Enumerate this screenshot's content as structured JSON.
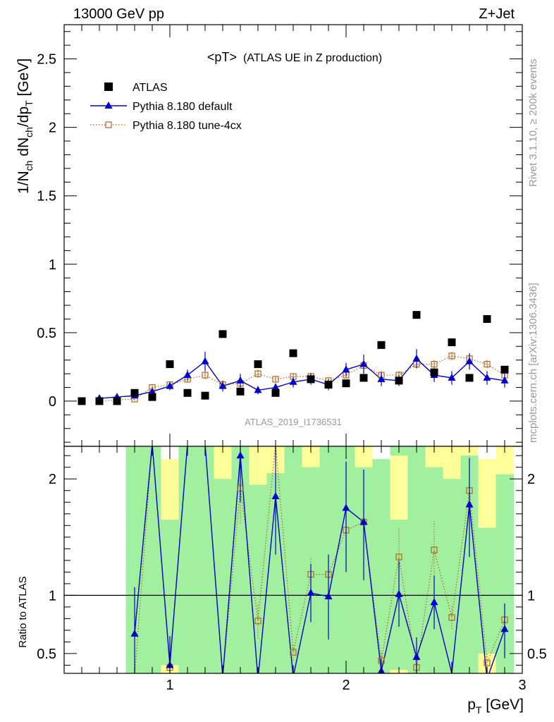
{
  "header": {
    "energy_label": "13000 GeV pp",
    "process_label": "Z+Jet",
    "plot_title_main": "<pT>",
    "plot_title_sub": "(ATLAS UE in Z production)",
    "analysis_id": "ATLAS_2019_I1736531",
    "side_label_top": "Rivet 3.1.10, ≥ 200k events",
    "side_label_bottom": "mcplots.cern.ch [arXiv:1306.3436]"
  },
  "colors": {
    "atlas": "#000000",
    "default": "#0000cc",
    "tune4cx": "#b5651d",
    "band_green": "#a0f0a0",
    "band_yellow": "#ffff99"
  },
  "chart_data": [
    {
      "type": "scatter",
      "ylabel": "1/N_ch dN_ch/dp_T [GeV]",
      "ylabel_main": "1/N",
      "ylabel_sub1": "ch",
      "ylabel_mid": " dN",
      "ylabel_sub2": "ch",
      "ylabel_mid2": "/dp",
      "ylabel_sub3": "T",
      "ylabel_unit": " [GeV]",
      "xlim": [
        0.4,
        3.0
      ],
      "ylim": [
        -0.33,
        2.75
      ],
      "yticks": [
        0,
        0.5,
        1,
        1.5,
        2,
        2.5
      ],
      "ytick_labels": [
        "0",
        "0.5",
        "1",
        "1.5",
        "2",
        "2.5"
      ],
      "legend_position": "top-left",
      "series": [
        {
          "name": "ATLAS",
          "style": "square",
          "x": [
            0.5,
            0.6,
            0.7,
            0.8,
            0.9,
            1.0,
            1.1,
            1.2,
            1.3,
            1.4,
            1.5,
            1.6,
            1.7,
            1.8,
            1.9,
            2.0,
            2.1,
            2.2,
            2.3,
            2.4,
            2.5,
            2.6,
            2.7,
            2.8,
            2.9
          ],
          "y": [
            0.0,
            0.0,
            0.0,
            0.06,
            0.03,
            0.27,
            0.06,
            0.04,
            0.49,
            0.07,
            0.27,
            0.06,
            0.35,
            0.16,
            0.12,
            0.13,
            0.17,
            0.41,
            0.15,
            0.63,
            0.21,
            0.43,
            0.17,
            0.6,
            0.23
          ]
        },
        {
          "name": "Pythia 8.180 default",
          "style": "triangle-line",
          "x": [
            0.6,
            0.7,
            0.8,
            0.9,
            1.0,
            1.1,
            1.2,
            1.3,
            1.4,
            1.5,
            1.6,
            1.7,
            1.8,
            1.9,
            2.0,
            2.1,
            2.2,
            2.3,
            2.4,
            2.5,
            2.6,
            2.7,
            2.8,
            2.9
          ],
          "y": [
            0.02,
            0.03,
            0.04,
            0.07,
            0.11,
            0.19,
            0.29,
            0.11,
            0.15,
            0.08,
            0.1,
            0.14,
            0.16,
            0.12,
            0.23,
            0.27,
            0.16,
            0.15,
            0.31,
            0.19,
            0.17,
            0.29,
            0.17,
            0.15
          ],
          "err": [
            0.01,
            0.01,
            0.01,
            0.02,
            0.03,
            0.04,
            0.07,
            0.04,
            0.05,
            0.03,
            0.03,
            0.04,
            0.04,
            0.04,
            0.05,
            0.07,
            0.05,
            0.04,
            0.07,
            0.05,
            0.05,
            0.06,
            0.05,
            0.05
          ]
        },
        {
          "name": "Pythia 8.180 tune-4cx",
          "style": "open-square-dotted",
          "x": [
            0.6,
            0.7,
            0.8,
            0.9,
            1.0,
            1.1,
            1.2,
            1.3,
            1.4,
            1.5,
            1.6,
            1.7,
            1.8,
            1.9,
            2.0,
            2.1,
            2.2,
            2.3,
            2.4,
            2.5,
            2.6,
            2.7,
            2.8,
            2.9
          ],
          "y": [
            0.0,
            0.01,
            0.015,
            0.1,
            0.12,
            0.16,
            0.19,
            0.12,
            0.13,
            0.2,
            0.16,
            0.18,
            0.18,
            0.15,
            0.19,
            0.26,
            0.19,
            0.19,
            0.27,
            0.27,
            0.33,
            0.31,
            0.27,
            0.19
          ],
          "err": [
            0.005,
            0.005,
            0.01,
            0.02,
            0.02,
            0.02,
            0.03,
            0.02,
            0.02,
            0.03,
            0.02,
            0.02,
            0.03,
            0.02,
            0.02,
            0.03,
            0.03,
            0.03,
            0.03,
            0.03,
            0.03,
            0.04,
            0.03,
            0.03
          ]
        }
      ]
    },
    {
      "type": "line",
      "ylabel": "Ratio to ATLAS",
      "xlabel_main": "p",
      "xlabel_sub": "T",
      "xlabel_unit": " [GeV]",
      "xlim": [
        0.4,
        3.0
      ],
      "ylim": [
        0.33,
        2.28
      ],
      "xticks": [
        1,
        2,
        3
      ],
      "xtick_labels": [
        "1",
        "2",
        "3"
      ],
      "yticks": [
        0.5,
        1,
        2
      ],
      "ytick_labels": [
        "0.5",
        "1",
        "2"
      ],
      "reference_line": 1.0,
      "bands": {
        "x_start": [
          0.75,
          0.85,
          0.95,
          1.05,
          1.15,
          1.25,
          1.35,
          1.45,
          1.55,
          1.65,
          1.75,
          1.85,
          1.95,
          2.05,
          2.15,
          2.25,
          2.35,
          2.45,
          2.55,
          2.65,
          2.75,
          2.85
        ],
        "x_end": [
          0.85,
          0.95,
          1.05,
          1.15,
          1.25,
          1.35,
          1.45,
          1.55,
          1.65,
          1.75,
          1.85,
          1.95,
          2.05,
          2.15,
          2.25,
          2.35,
          2.45,
          2.55,
          2.65,
          2.75,
          2.85,
          2.95
        ],
        "green_low": [
          0.33,
          0.33,
          0.37,
          0.33,
          0.33,
          0.33,
          0.33,
          0.33,
          0.33,
          0.33,
          0.33,
          0.33,
          0.33,
          0.33,
          0.33,
          0.35,
          0.33,
          0.33,
          0.33,
          0.33,
          0.45,
          0.33
        ],
        "green_high": [
          2.28,
          2.28,
          2.08,
          2.28,
          2.28,
          2.28,
          2.28,
          2.28,
          2.28,
          2.28,
          2.28,
          2.28,
          2.28,
          2.17,
          2.28,
          2.28,
          2.28,
          2.28,
          2.28,
          2.28,
          2.08,
          2.04
        ],
        "yellow_low": [
          0.33,
          0.33,
          0.33,
          0.33,
          0.33,
          0.33,
          0.33,
          0.33,
          0.33,
          0.33,
          0.33,
          0.33,
          0.33,
          0.33,
          0.33,
          0.33,
          0.33,
          0.33,
          0.33,
          0.33,
          0.33,
          0.33
        ],
        "yellow_high": [
          2.28,
          2.28,
          2.28,
          2.28,
          2.28,
          2.28,
          2.28,
          2.28,
          2.28,
          2.28,
          2.28,
          2.28,
          2.28,
          2.28,
          2.28,
          2.28,
          2.28,
          2.28,
          2.28,
          2.28,
          2.28,
          2.28
        ],
        "white_top_x": [
          1.0,
          2.2,
          2.8
        ],
        "yellow_inner": [
          {
            "x0": 0.95,
            "x1": 1.05,
            "y0": 1.65,
            "y1": 2.08
          },
          {
            "x0": 0.95,
            "x1": 1.05,
            "y0": 0.33,
            "y1": 0.4
          },
          {
            "x0": 1.25,
            "x1": 1.35,
            "y0": 2.0,
            "y1": 2.28
          },
          {
            "x0": 1.45,
            "x1": 1.55,
            "y0": 1.95,
            "y1": 2.28
          },
          {
            "x0": 1.55,
            "x1": 1.65,
            "y0": 2.05,
            "y1": 2.28
          },
          {
            "x0": 1.75,
            "x1": 1.85,
            "y0": 2.1,
            "y1": 2.28
          },
          {
            "x0": 2.05,
            "x1": 2.15,
            "y0": 2.1,
            "y1": 2.2
          },
          {
            "x0": 2.25,
            "x1": 2.35,
            "y0": 1.65,
            "y1": 2.2
          },
          {
            "x0": 2.25,
            "x1": 2.35,
            "y0": 0.33,
            "y1": 0.36
          },
          {
            "x0": 2.45,
            "x1": 2.55,
            "y0": 2.1,
            "y1": 2.28
          },
          {
            "x0": 2.55,
            "x1": 2.65,
            "y0": 2.0,
            "y1": 2.28
          },
          {
            "x0": 2.65,
            "x1": 2.75,
            "y0": 2.2,
            "y1": 2.28
          },
          {
            "x0": 2.75,
            "x1": 2.85,
            "y0": 1.58,
            "y1": 2.08
          },
          {
            "x0": 2.75,
            "x1": 2.85,
            "y0": 0.33,
            "y1": 0.5
          },
          {
            "x0": 2.85,
            "x1": 2.95,
            "y0": 2.04,
            "y1": 2.28
          }
        ]
      },
      "series": [
        {
          "name": "Pythia 8.180 default",
          "style": "triangle-line",
          "x": [
            0.8,
            0.9,
            1.0,
            1.1,
            1.2,
            1.3,
            1.4,
            1.5,
            1.6,
            1.7,
            1.8,
            1.9,
            2.0,
            2.1,
            2.2,
            2.3,
            2.4,
            2.5,
            2.6,
            2.7,
            2.8,
            2.9
          ],
          "y": [
            0.67,
            2.3,
            0.4,
            2.3,
            2.3,
            0.3,
            2.2,
            0.28,
            1.85,
            0.3,
            1.02,
            0.99,
            1.75,
            1.63,
            0.35,
            1.01,
            0.47,
            0.94,
            0.33,
            1.78,
            0.28,
            0.71
          ],
          "err_low": [
            0.35,
            0.1,
            0.15,
            0.1,
            0.1,
            0.1,
            0.4,
            0.1,
            0.5,
            0.1,
            0.25,
            0.37,
            0.55,
            0.5,
            0.1,
            0.28,
            0.17,
            0.23,
            0.1,
            0.45,
            0.1,
            0.25
          ],
          "err_high": [
            0.4,
            0.1,
            0.25,
            0.1,
            0.1,
            0.1,
            0.3,
            0.1,
            0.5,
            0.1,
            0.25,
            0.36,
            0.4,
            0.45,
            0.1,
            0.28,
            0.17,
            0.23,
            0.1,
            0.4,
            0.1,
            0.22
          ]
        },
        {
          "name": "Pythia 8.180 tune-4cx",
          "style": "open-square-dotted",
          "x": [
            0.8,
            0.9,
            1.0,
            1.1,
            1.2,
            1.3,
            1.4,
            1.5,
            1.6,
            1.7,
            1.8,
            1.9,
            2.0,
            2.1,
            2.2,
            2.3,
            2.4,
            2.5,
            2.6,
            2.7,
            2.8,
            2.9
          ],
          "y": [
            0.3,
            2.3,
            0.38,
            2.3,
            2.3,
            0.3,
            1.92,
            0.78,
            2.3,
            0.51,
            1.18,
            1.18,
            1.56,
            1.63,
            0.44,
            1.33,
            0.38,
            1.39,
            0.81,
            1.9,
            0.42,
            0.79
          ],
          "err_low": [
            0.05,
            0.1,
            0.05,
            0.1,
            0.1,
            0.05,
            0.3,
            0.15,
            0.1,
            0.07,
            0.15,
            0.15,
            0.15,
            0.15,
            0.07,
            0.25,
            0.05,
            0.25,
            0.1,
            0.3,
            0.08,
            0.15
          ],
          "err_high": [
            0.05,
            0.1,
            0.05,
            0.1,
            0.1,
            0.05,
            0.3,
            0.15,
            0.1,
            0.07,
            0.15,
            0.15,
            0.15,
            0.15,
            0.07,
            0.25,
            0.05,
            0.25,
            0.1,
            0.3,
            0.08,
            0.15
          ]
        }
      ]
    }
  ]
}
